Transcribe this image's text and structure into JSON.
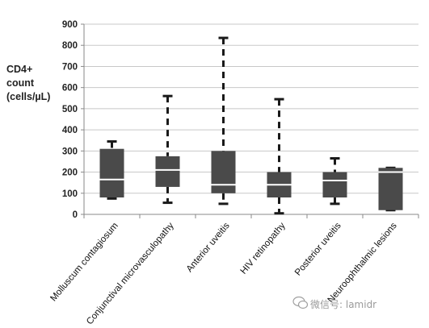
{
  "chart_data": {
    "type": "box",
    "title": "",
    "xlabel": "",
    "ylabel_lines": [
      "CD4+",
      "count",
      "(cells/µL)"
    ],
    "ylim": [
      0,
      900
    ],
    "yticks": [
      0,
      100,
      200,
      300,
      400,
      500,
      600,
      700,
      800,
      900
    ],
    "grid": true,
    "colors": {
      "box": "#4a4a4a",
      "whisker": "#1a1a1a",
      "median": "#ffffff",
      "grid": "#c8c8c8"
    },
    "categories": [
      "Molluscum contagiosum",
      "Conjunctival microvasculopathy",
      "Anterior uveitis",
      "HIV retinopathy",
      "Posterior uveitis",
      "Neuroophthalmic lesions"
    ],
    "boxes": [
      {
        "min": 75,
        "q1": 80,
        "median": 165,
        "q3": 310,
        "max": 345
      },
      {
        "min": 55,
        "q1": 130,
        "median": 210,
        "q3": 275,
        "max": 560
      },
      {
        "min": 50,
        "q1": 100,
        "median": 140,
        "q3": 300,
        "max": 835
      },
      {
        "min": 5,
        "q1": 80,
        "median": 140,
        "q3": 200,
        "max": 545
      },
      {
        "min": 50,
        "q1": 80,
        "median": 160,
        "q3": 200,
        "max": 265
      },
      {
        "min": 20,
        "q1": 20,
        "median": 200,
        "q3": 220,
        "max": 220
      }
    ]
  },
  "watermark": {
    "text": "微信号: lamidr",
    "icon": "wechat-icon"
  }
}
